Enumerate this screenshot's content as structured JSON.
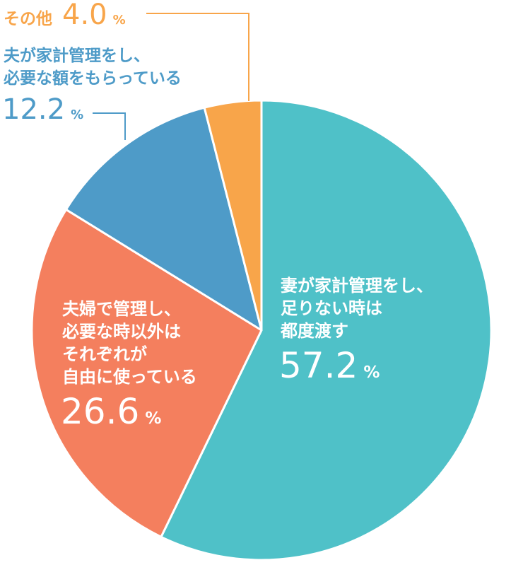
{
  "chart_data": {
    "type": "pie",
    "slices": [
      {
        "label_lines": [
          "妻が家計管理をし、",
          "足りない時は",
          "都度渡す"
        ],
        "value": 57.2,
        "value_text": "57.2",
        "color": "#4fc1c8",
        "text_color": "#ffffff"
      },
      {
        "label_lines": [
          "夫婦で管理し、",
          "必要な時以外は",
          "それぞれが",
          "自由に使っている"
        ],
        "value": 26.6,
        "value_text": "26.6",
        "color": "#f47f5e",
        "text_color": "#ffffff"
      },
      {
        "label_lines": [
          "夫が家計管理をし、",
          "必要な額をもらっている"
        ],
        "value": 12.2,
        "value_text": "12.2",
        "color": "#4e9bc8",
        "text_color": "#4e9bc8"
      },
      {
        "label_lines": [
          "その他"
        ],
        "value": 4.0,
        "value_text": "4.0",
        "color": "#f8a54a",
        "text_color": "#f8a54a"
      }
    ],
    "unit": "%",
    "start": "12 o'clock",
    "direction": "clockwise",
    "slice_border_color": "#ffffff"
  }
}
